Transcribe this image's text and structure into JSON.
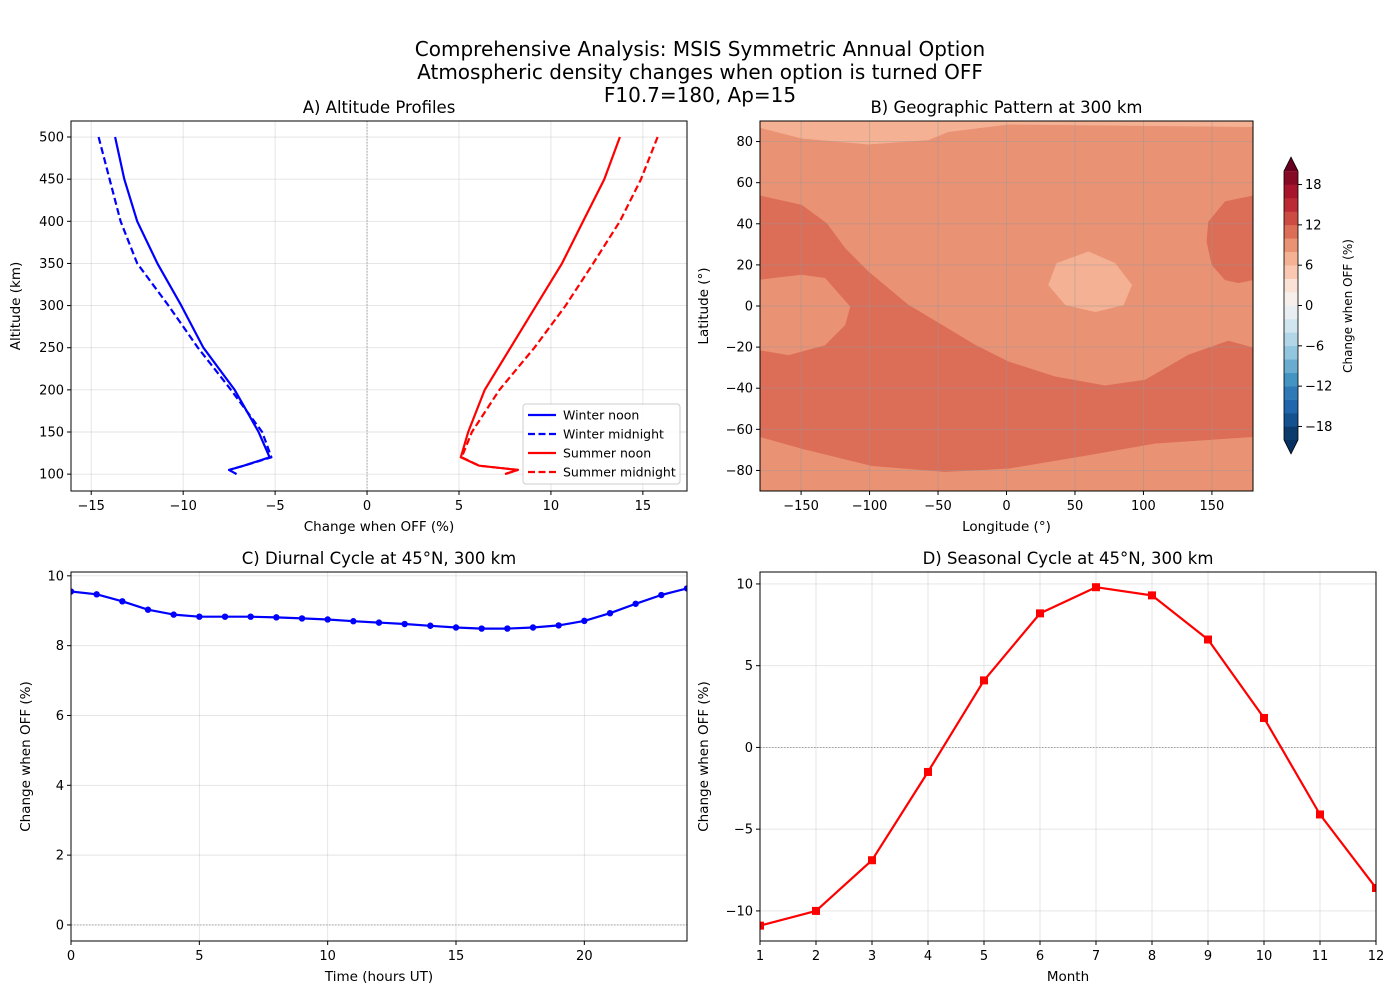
{
  "suptitle": [
    "Comprehensive Analysis: MSIS Symmetric Annual Option",
    "Atmospheric density changes when option is turned OFF",
    "F10.7=180, Ap=15"
  ],
  "chart_data": [
    {
      "id": "A",
      "type": "line",
      "title": "A) Altitude Profiles",
      "xlabel": "Change when OFF (%)",
      "ylabel": "Altitude (km)",
      "xlim": [
        -16.1,
        17.4
      ],
      "ylim": [
        80,
        519
      ],
      "xticks": [
        -15,
        -10,
        -5,
        0,
        5,
        10,
        15
      ],
      "xtick_labels": [
        "−15",
        "−10",
        "−5",
        "0",
        "5",
        "10",
        "15"
      ],
      "yticks": [
        100,
        150,
        200,
        250,
        300,
        350,
        400,
        450,
        500
      ],
      "ytick_labels": [
        "100",
        "150",
        "200",
        "250",
        "300",
        "350",
        "400",
        "450",
        "500"
      ],
      "grid": true,
      "zero_line": "vertical",
      "legend": "lower-right",
      "series": [
        {
          "name": "Winter noon",
          "color": "#0000ff",
          "style": "solid",
          "x": [
            -13.7,
            -13.2,
            -12.5,
            -11.4,
            -10.1,
            -8.9,
            -7.2,
            -5.9,
            -5.3,
            -6.7,
            -7.5,
            -7.1
          ],
          "y": [
            500,
            450,
            400,
            350,
            300,
            250,
            200,
            150,
            120,
            110,
            105,
            100
          ]
        },
        {
          "name": "Winter midnight",
          "color": "#0000ff",
          "style": "dashed",
          "x": [
            -14.6,
            -14.0,
            -13.4,
            -12.5,
            -10.8,
            -9.2,
            -7.4,
            -5.7,
            -5.2,
            -6.7,
            -7.5,
            -7.1
          ],
          "y": [
            500,
            450,
            400,
            350,
            300,
            250,
            200,
            150,
            120,
            110,
            105,
            100
          ]
        },
        {
          "name": "Summer noon",
          "color": "#ff0000",
          "style": "solid",
          "x": [
            13.75,
            12.9,
            11.75,
            10.6,
            9.2,
            7.8,
            6.4,
            5.5,
            5.1,
            6.1,
            8.2,
            7.5
          ],
          "y": [
            500,
            450,
            400,
            350,
            300,
            250,
            200,
            150,
            120,
            110,
            105,
            100
          ]
        },
        {
          "name": "Summer midnight",
          "color": "#ff0000",
          "style": "dashed",
          "x": [
            15.8,
            14.9,
            13.75,
            12.3,
            10.8,
            9.1,
            7.2,
            5.7,
            5.15,
            6.1,
            8.2,
            7.5
          ],
          "y": [
            500,
            450,
            400,
            350,
            300,
            250,
            200,
            150,
            120,
            110,
            105,
            100
          ]
        }
      ]
    },
    {
      "id": "B",
      "type": "heatmap",
      "title": "B) Geographic Pattern at 300 km",
      "xlabel": "Longitude (°)",
      "ylabel": "Latitude (°)",
      "xlim": [
        -180,
        180
      ],
      "ylim": [
        -90,
        90
      ],
      "xticks": [
        -150,
        -100,
        -50,
        0,
        50,
        100,
        150
      ],
      "xtick_labels": [
        "−150",
        "−100",
        "−50",
        "0",
        "50",
        "100",
        "150"
      ],
      "yticks": [
        -80,
        -60,
        -40,
        -20,
        0,
        20,
        40,
        60,
        80
      ],
      "ytick_labels": [
        "−80",
        "−60",
        "−40",
        "−20",
        "0",
        "20",
        "40",
        "60",
        "80"
      ],
      "grid": true,
      "contour_regions": [
        {
          "level": [
            8,
            10
          ],
          "color": "#ea9274",
          "points": [
            [
              -180,
              -90
            ],
            [
              180,
              -90
            ],
            [
              180,
              90
            ],
            [
              -180,
              90
            ]
          ]
        },
        {
          "level": [
            10,
            12
          ],
          "color": "#dc6e58",
          "points": [
            [
              -180,
              53.6
            ],
            [
              -149.6,
              49.1
            ],
            [
              -131.3,
              40.2
            ],
            [
              -117.9,
              28.1
            ],
            [
              -100.9,
              16.7
            ],
            [
              -71.7,
              0.5
            ],
            [
              -47.3,
              -9.2
            ],
            [
              -22.9,
              -19
            ],
            [
              1.4,
              -27.1
            ],
            [
              35.5,
              -34.4
            ],
            [
              72,
              -38.8
            ],
            [
              101.2,
              -36
            ],
            [
              132.9,
              -23.8
            ],
            [
              162,
              -17
            ],
            [
              180,
              -20.3
            ],
            [
              180,
              -63.6
            ],
            [
              108.5,
              -66.8
            ],
            [
              59.8,
              -72.5
            ],
            [
              1.4,
              -79
            ],
            [
              -44.9,
              -80.6
            ],
            [
              -98.4,
              -77.7
            ],
            [
              -149.6,
              -69.3
            ],
            [
              -180,
              -63.6
            ]
          ]
        },
        {
          "level": [
            8,
            10
          ],
          "color": "#ea9274",
          "points": [
            [
              -180,
              12.7
            ],
            [
              -149.6,
              15.1
            ],
            [
              -132.5,
              13.5
            ],
            [
              -114.3,
              -0.3
            ],
            [
              -117.9,
              -9.2
            ],
            [
              -132.5,
              -19
            ],
            [
              -159.3,
              -23.8
            ],
            [
              -180,
              -21.4
            ]
          ]
        },
        {
          "level": [
            10,
            12
          ],
          "color": "#dc6e58",
          "points": [
            [
              180,
              53.6
            ],
            [
              159.6,
              50.8
            ],
            [
              147.5,
              41
            ],
            [
              146.3,
              31.3
            ],
            [
              150,
              20
            ],
            [
              159.6,
              12.7
            ],
            [
              169.4,
              11.3
            ],
            [
              180,
              12.7
            ]
          ]
        },
        {
          "level": [
            6,
            8
          ],
          "color": "#f4b193",
          "points": [
            [
              -180,
              90
            ],
            [
              180,
              90
            ],
            [
              180,
              87.2
            ],
            [
              1.4,
              88.4
            ],
            [
              -42.4,
              84.8
            ],
            [
              -57,
              80.8
            ],
            [
              -100.9,
              78.7
            ],
            [
              -149.6,
              81.6
            ],
            [
              -180,
              86.8
            ]
          ]
        },
        {
          "level": [
            6,
            8
          ],
          "color": "#f4b193",
          "points": [
            [
              30.6,
              10.2
            ],
            [
              36.7,
              20.8
            ],
            [
              59.8,
              26.4
            ],
            [
              79.3,
              20.8
            ],
            [
              91.5,
              10.2
            ],
            [
              85.4,
              0.5
            ],
            [
              65,
              -2.8
            ],
            [
              43.1,
              0.5
            ]
          ]
        }
      ],
      "colorbar": {
        "label": "Change when OFF (%)",
        "levels": [
          -20,
          20
        ],
        "step": 2,
        "extend": "both",
        "colors": [
          "#0d3a6d",
          "#15508f",
          "#2166ac",
          "#3079b7",
          "#4393c3",
          "#6aabd0",
          "#92c5de",
          "#b2d5e8",
          "#d1e5f0",
          "#e8eef2",
          "#f7efeb",
          "#fbe2d6",
          "#fac8b2",
          "#f4b193",
          "#ea9274",
          "#dc6e58",
          "#cc4c44",
          "#bb2a35",
          "#a8142c",
          "#870a25"
        ],
        "under_color": "#053061",
        "over_color": "#67001f",
        "ticks": [
          -18,
          -12,
          -6,
          0,
          6,
          12,
          18
        ],
        "tick_labels": [
          "−18",
          "−12",
          "−6",
          "0",
          "6",
          "12",
          "18"
        ]
      }
    },
    {
      "id": "C",
      "type": "line",
      "title": "C) Diurnal Cycle at 45°N, 300 km",
      "xlabel": "Time (hours UT)",
      "ylabel": "Change when OFF (%)",
      "xlim": [
        0,
        24
      ],
      "ylim": [
        -0.46,
        10.11
      ],
      "xticks": [
        0,
        5,
        10,
        15,
        20
      ],
      "xtick_labels": [
        "0",
        "5",
        "10",
        "15",
        "20"
      ],
      "yticks": [
        0,
        2,
        4,
        6,
        8,
        10
      ],
      "ytick_labels": [
        "0",
        "2",
        "4",
        "6",
        "8",
        "10"
      ],
      "grid": true,
      "zero_line": "horizontal",
      "series": [
        {
          "color": "#0000ff",
          "style": "solid",
          "marker": "circle",
          "x": [
            0,
            1,
            2,
            3,
            4,
            5,
            6,
            7,
            8,
            9,
            10,
            11,
            12,
            13,
            14,
            15,
            16,
            17,
            18,
            19,
            20,
            21,
            22,
            23,
            24
          ],
          "y": [
            9.55,
            9.47,
            9.27,
            9.03,
            8.89,
            8.83,
            8.83,
            8.83,
            8.81,
            8.78,
            8.75,
            8.7,
            8.66,
            8.62,
            8.57,
            8.52,
            8.49,
            8.49,
            8.52,
            8.58,
            8.71,
            8.93,
            9.2,
            9.45,
            9.64
          ]
        }
      ]
    },
    {
      "id": "D",
      "type": "line",
      "title": "D) Seasonal Cycle at 45°N, 300 km",
      "xlabel": "Month",
      "ylabel": "Change when OFF (%)",
      "xlim": [
        1,
        12
      ],
      "ylim": [
        -11.84,
        10.73
      ],
      "xticks": [
        1,
        2,
        3,
        4,
        5,
        6,
        7,
        8,
        9,
        10,
        11,
        12
      ],
      "xtick_labels": [
        "1",
        "2",
        "3",
        "4",
        "5",
        "6",
        "7",
        "8",
        "9",
        "10",
        "11",
        "12"
      ],
      "yticks": [
        -10,
        -5,
        0,
        5,
        10
      ],
      "ytick_labels": [
        "−10",
        "−5",
        "0",
        "5",
        "10"
      ],
      "grid": true,
      "zero_line": "horizontal",
      "series": [
        {
          "color": "#ff0000",
          "style": "solid",
          "marker": "square",
          "x": [
            1,
            2,
            3,
            4,
            5,
            6,
            7,
            8,
            9,
            10,
            11,
            12
          ],
          "y": [
            -10.9,
            -10.0,
            -6.9,
            -1.5,
            4.1,
            8.2,
            9.8,
            9.3,
            6.6,
            1.8,
            -4.1,
            -8.6
          ]
        }
      ]
    }
  ]
}
